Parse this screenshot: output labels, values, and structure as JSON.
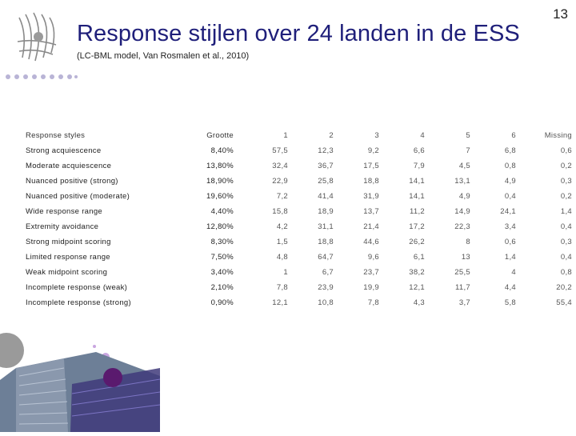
{
  "slide": {
    "number": "13",
    "title": "Response stijlen over 24 landen in de ESS",
    "subtitle": "(LC-BML model, Van Rosmalen et al., 2010)"
  },
  "table": {
    "headers": [
      "Response styles",
      "Grootte",
      "1",
      "2",
      "3",
      "4",
      "5",
      "6",
      "Missing"
    ],
    "rows": [
      {
        "name": "Strong acquiescence",
        "size": "8,40%",
        "values": [
          "57,5",
          "12,3",
          "9,2",
          "6,6",
          "7",
          "6,8",
          "0,6"
        ]
      },
      {
        "name": "Moderate acquiescence",
        "size": "13,80%",
        "values": [
          "32,4",
          "36,7",
          "17,5",
          "7,9",
          "4,5",
          "0,8",
          "0,2"
        ]
      },
      {
        "name": "Nuanced positive (strong)",
        "size": "18,90%",
        "values": [
          "22,9",
          "25,8",
          "18,8",
          "14,1",
          "13,1",
          "4,9",
          "0,3"
        ]
      },
      {
        "name": "Nuanced positive (moderate)",
        "size": "19,60%",
        "values": [
          "7,2",
          "41,4",
          "31,9",
          "14,1",
          "4,9",
          "0,4",
          "0,2"
        ]
      },
      {
        "name": "Wide response range",
        "size": "4,40%",
        "values": [
          "15,8",
          "18,9",
          "13,7",
          "11,2",
          "14,9",
          "24,1",
          "1,4"
        ]
      },
      {
        "name": "Extremity avoidance",
        "size": "12,80%",
        "values": [
          "4,2",
          "31,1",
          "21,4",
          "17,2",
          "22,3",
          "3,4",
          "0,4"
        ]
      },
      {
        "name": "Strong midpoint scoring",
        "size": "8,30%",
        "values": [
          "1,5",
          "18,8",
          "44,6",
          "26,2",
          "8",
          "0,6",
          "0,3"
        ]
      },
      {
        "name": "Limited response range",
        "size": "7,50%",
        "values": [
          "4,8",
          "64,7",
          "9,6",
          "6,1",
          "13",
          "1,4",
          "0,4"
        ]
      },
      {
        "name": "Weak midpoint scoring",
        "size": "3,40%",
        "values": [
          "1",
          "6,7",
          "23,7",
          "38,2",
          "25,5",
          "4",
          "0,8"
        ]
      },
      {
        "name": "Incomplete response (weak)",
        "size": "2,10%",
        "values": [
          "7,8",
          "23,9",
          "19,9",
          "12,1",
          "11,7",
          "4,4",
          "20,2"
        ]
      },
      {
        "name": "Incomplete response (strong)",
        "size": "0,90%",
        "values": [
          "12,1",
          "10,8",
          "7,8",
          "4,3",
          "3,7",
          "5,8",
          "55,4"
        ]
      }
    ]
  },
  "colors": {
    "title": "#1f1f7a",
    "dots": "#b9b4d6",
    "accent_purple": "#5a1a6e",
    "accent_lavender": "#c9a6e0",
    "accent_grey": "#9a9a9a"
  }
}
